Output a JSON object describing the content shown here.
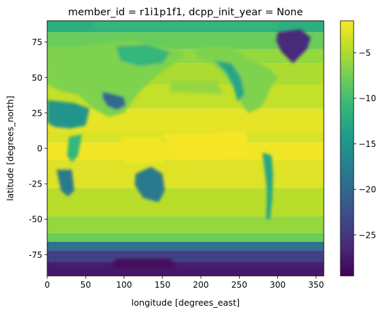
{
  "chart_data": {
    "type": "heatmap",
    "title": "member_id = r1i1p1f1, dcpp_init_year = None",
    "xlabel": "longitude [degrees_east]",
    "ylabel": "latitude [degrees_north]",
    "xlim": [
      0,
      360
    ],
    "ylim": [
      -90,
      90
    ],
    "x_ticks": [
      0,
      50,
      100,
      150,
      200,
      250,
      300,
      350
    ],
    "y_ticks": [
      -75,
      -50,
      -25,
      0,
      25,
      50,
      75
    ],
    "colorbar": {
      "colormap": "viridis",
      "range": [
        -29.5,
        -1.5
      ],
      "ticks": [
        -25,
        -20,
        -15,
        -10,
        -5
      ]
    },
    "grid": false,
    "field_description": "global map; near 0 to -5 over tropical/subtropical oceans and lowland continents; about -10 to -15 mid-latitude oceans and arctic seas; about -15 to -22 over Tibet, Andes, Rockies, Sahara, Australia; about -25 to -29 over Antarctica and Greenland"
  }
}
